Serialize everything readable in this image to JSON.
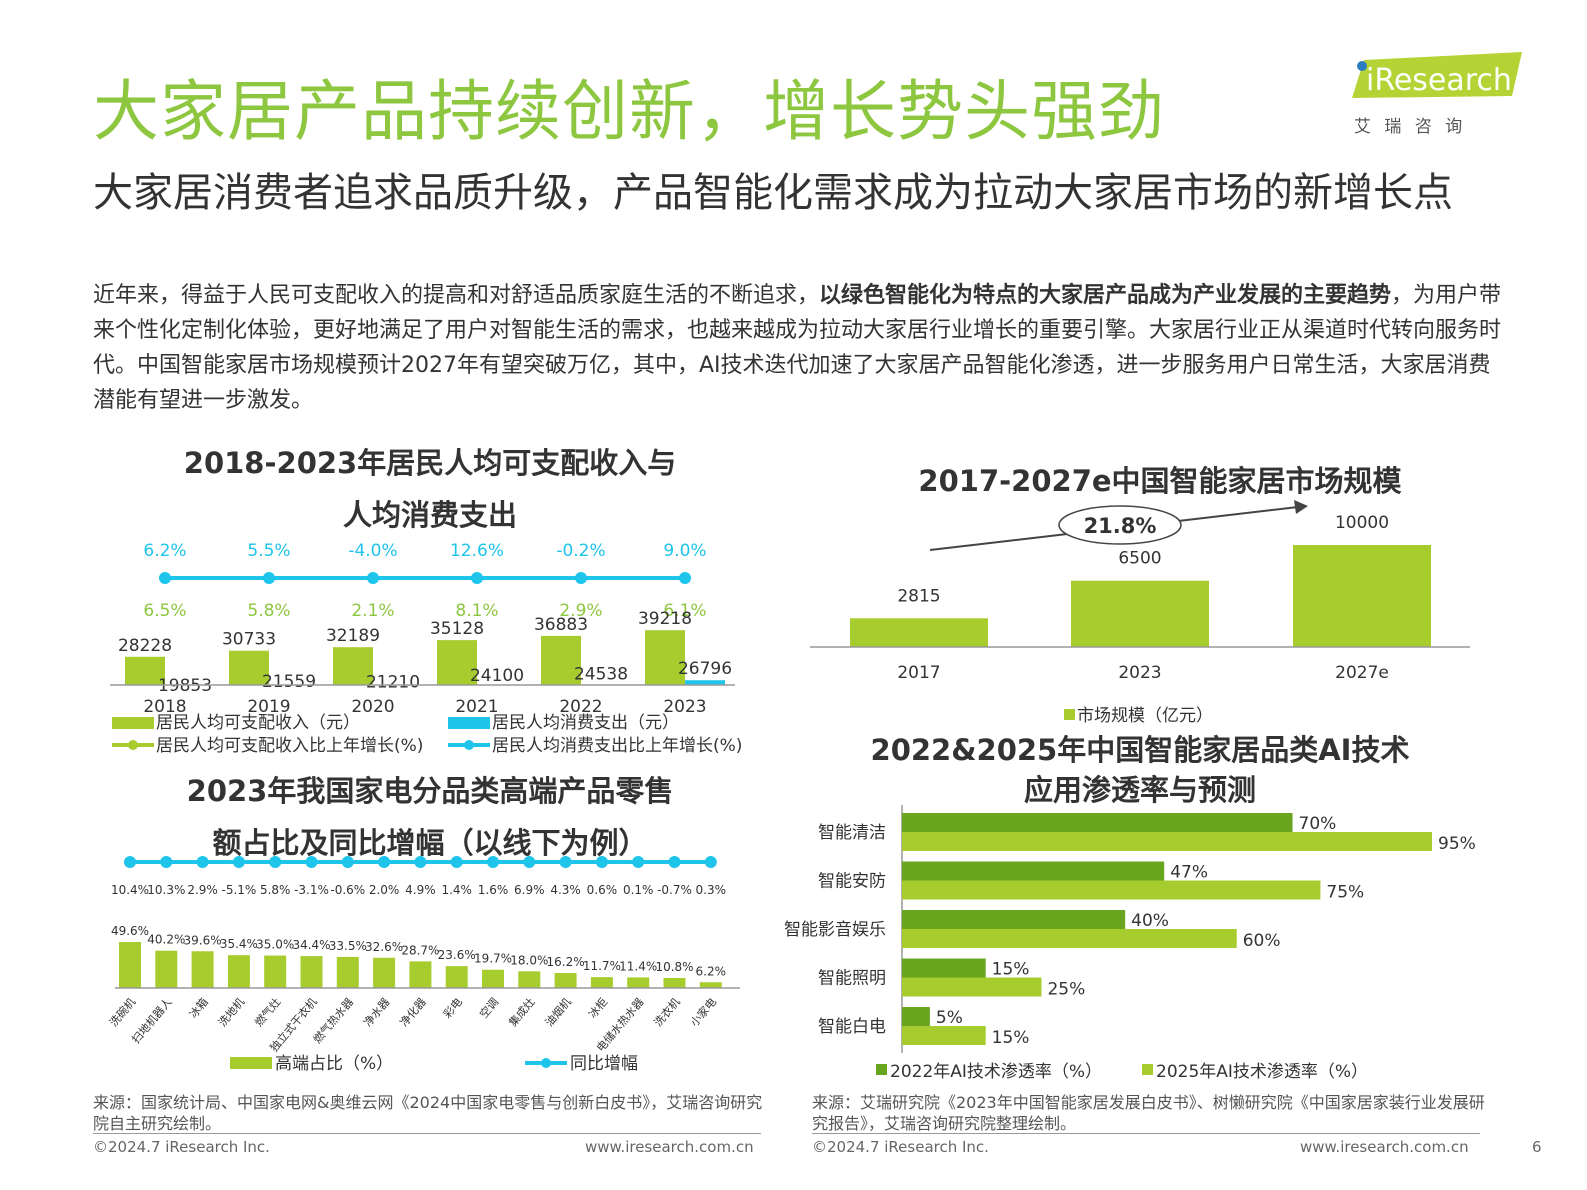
{
  "page": {
    "title": "大家居产品持续创新，增长势头强劲",
    "subtitle": "大家居消费者追求品质升级，产品智能化需求成为拉动大家居市场的新增长点",
    "body_normal_1": "近年来，得益于人民可支配收入的提高和对舒适品质家庭生活的不断追求，",
    "body_bold": "以绿色智能化为特点的大家居产品成为产业发展的主要趋势",
    "body_normal_2": "，为用户带来个性化定制化体验，更好地满足了用户对智能生活的需求，也越来越成为拉动大家居行业增长的重要引擎。大家居行业正从渠道时代转向服务时代。中国智能家居市场规模预计2027年有望突破万亿，其中，AI技术迭代加速了大家居产品智能化渗透，进一步服务用户日常生活，大家居消费潜能有望进一步激发。",
    "logo_text": "iResearch",
    "logo_sub": "艾 瑞 咨 询",
    "page_number": "6"
  },
  "colors": {
    "green": "#8dc63f",
    "bar_green": "#a6cc2e",
    "cyan": "#1ec4ea",
    "dark_green": "#6aa51f"
  },
  "footer": {
    "left_source": "来源：国家统计局、中国家电网&奥维云网《2024中国家电零售与创新白皮书》，艾瑞咨询研究院自主研究绘制。",
    "right_source": "来源：艾瑞研究院《2023年中国智能家居发展白皮书》、树懒研究院《中国家居家装行业发展研究报告》，艾瑞咨询研究院整理绘制。",
    "copyright_left": "©2024.7 iResearch Inc.",
    "url_left": "www.iresearch.com.cn",
    "copyright_right": "©2024.7 iResearch Inc.",
    "url_right": "www.iresearch.com.cn"
  },
  "chart_data": [
    {
      "id": "income",
      "type": "bar",
      "title_line1": "2018-2023年居民人均可支配收入与",
      "title_line2": "人均消费支出",
      "categories": [
        "2018",
        "2019",
        "2020",
        "2021",
        "2022",
        "2023"
      ],
      "series": [
        {
          "name": "居民人均可支配收入（元）",
          "values": [
            28228,
            30733,
            32189,
            35128,
            36883,
            39218
          ]
        },
        {
          "name": "居民人均消费支出（元）",
          "values": [
            19853,
            21559,
            21210,
            24100,
            24538,
            26796
          ]
        }
      ],
      "growth_series": [
        {
          "name": "居民人均可支配收入比上年增长(%)",
          "labels": [
            "6.5%",
            "5.8%",
            "2.1%",
            "8.1%",
            "2.9%",
            "6.1%"
          ]
        },
        {
          "name": "居民人均消费支出比上年增长(%)",
          "labels": [
            "6.2%",
            "5.5%",
            "-4.0%",
            "12.6%",
            "-0.2%",
            "9.0%"
          ]
        }
      ]
    },
    {
      "id": "appliance",
      "type": "bar",
      "title_line1": "2023年我国家电分品类高端产品零售",
      "title_line2": "额占比及同比增幅（以线下为例）",
      "categories": [
        "洗碗机",
        "扫地机器人",
        "冰箱",
        "洗地机",
        "燃气灶",
        "独立式干衣机",
        "燃气热水器",
        "净水器",
        "净化器",
        "彩电",
        "空调",
        "集成灶",
        "油烟机",
        "冰柜",
        "电储水热水器",
        "洗衣机",
        "小家电"
      ],
      "share_name": "高端占比（%）",
      "share_values": [
        49.6,
        40.2,
        39.6,
        35.4,
        35.0,
        34.4,
        33.5,
        32.6,
        28.7,
        23.6,
        19.7,
        18.0,
        16.2,
        11.7,
        11.4,
        10.8,
        6.2
      ],
      "growth_name": "同比增幅",
      "growth_labels": [
        "10.4%",
        "10.3%",
        "2.9%",
        "-5.1%",
        "5.8%",
        "-3.1%",
        "-0.6%",
        "2.0%",
        "4.9%",
        "1.4%",
        "1.6%",
        "6.9%",
        "4.3%",
        "0.6%",
        "0.1%",
        "-0.7%",
        "0.3%"
      ]
    },
    {
      "id": "market",
      "type": "bar",
      "title": "2017-2027e中国智能家居市场规模",
      "categories": [
        "2017",
        "2023",
        "2027e"
      ],
      "values": [
        2815,
        6500,
        10000
      ],
      "series_name": "市场规模（亿元）",
      "cagr": "21.8%"
    },
    {
      "id": "ai",
      "type": "bar",
      "orientation": "horizontal",
      "title_line1": "2022&2025年中国智能家居品类AI技术",
      "title_line2": "应用渗透率与预测",
      "categories": [
        "智能清洁",
        "智能安防",
        "智能影音娱乐",
        "智能照明",
        "智能白电"
      ],
      "series": [
        {
          "name": "2022年AI技术渗透率（%）",
          "values": [
            70,
            47,
            40,
            15,
            5
          ]
        },
        {
          "name": "2025年AI技术渗透率（%）",
          "values": [
            95,
            75,
            60,
            25,
            15
          ]
        }
      ]
    }
  ]
}
